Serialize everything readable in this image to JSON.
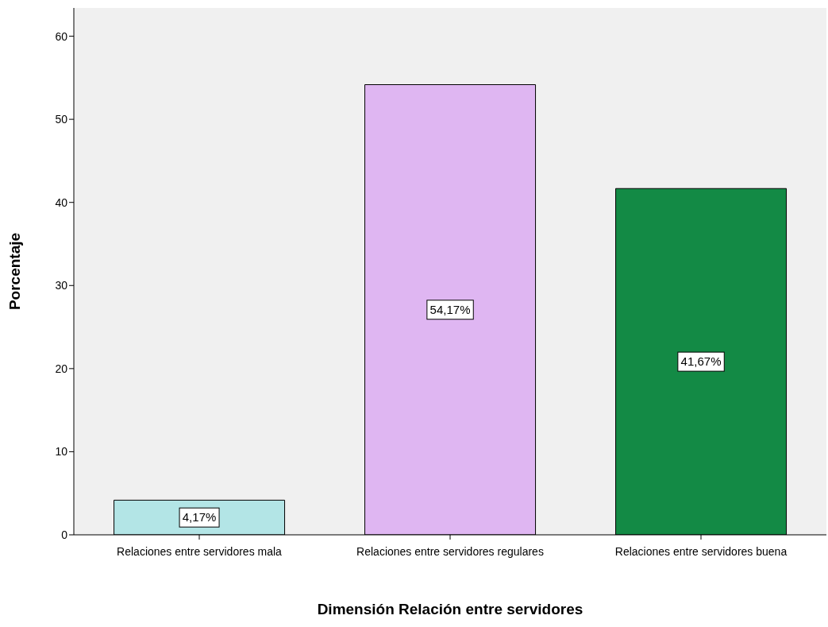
{
  "chart_data": {
    "type": "bar",
    "xlabel": "Dimensión Relación entre servidores",
    "ylabel": "Porcentaje",
    "categories": [
      "Relaciones entre servidores mala",
      "Relaciones entre servidores regulares",
      "Relaciones entre servidores buena"
    ],
    "values": [
      4.17,
      54.17,
      41.67
    ],
    "colors": [
      "#b3e5e6",
      "#dfb6f2",
      "#138a45"
    ],
    "value_labels": [
      "4,17%",
      "54,17%",
      "41,67%"
    ],
    "ylim": [
      0,
      63.4
    ],
    "yticks": [
      0,
      10,
      20,
      30,
      40,
      50,
      60
    ],
    "grid": false,
    "legend": false
  }
}
